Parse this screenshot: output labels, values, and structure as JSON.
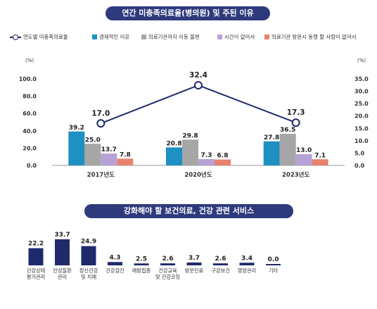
{
  "titles": {
    "chart1": "연간 미충족의료율(병의원) 및 주된 이유",
    "chart2": "강화해야 할 보건의료, 건강 관련 서비스"
  },
  "colors": {
    "title_bg": "#2e3a7c",
    "line": "#1f2a6b",
    "economic": "#1f8fc4",
    "wait": "#a6a6a6",
    "time": "#b7a2d6",
    "nocompanion": "#e8826f",
    "bar2": "#1f2a6b"
  },
  "chart_data": [
    {
      "type": "bar",
      "title": "연간 미충족의료율(병의원) 및 주된 이유",
      "categories": [
        "2017년도",
        "2020년도",
        "2023년도"
      ],
      "y_left": {
        "unit": "(%)",
        "ylim": [
          0,
          100
        ],
        "ticks": [
          "0.0",
          "20.0",
          "40.0",
          "60.0",
          "80.0",
          "100.0"
        ]
      },
      "y_right": {
        "unit": "(%)",
        "ylim": [
          0,
          35
        ],
        "ticks": [
          "0.0",
          "5.0",
          "10.0",
          "15.0",
          "20.0",
          "25.0",
          "30.0",
          "35.0"
        ]
      },
      "legend_position": "top",
      "series": [
        {
          "name": "경제적인 이유",
          "kind": "bar",
          "axis": "left",
          "color": "#1f8fc4",
          "values": [
            39.2,
            20.8,
            27.8
          ],
          "labels": [
            "39.2",
            "20.8",
            "27.8"
          ]
        },
        {
          "name": "의료기관까지 이동 불편",
          "kind": "bar",
          "axis": "left",
          "color": "#a6a6a6",
          "values": [
            25.0,
            29.8,
            36.5
          ],
          "labels": [
            "25.0",
            "29.8",
            "36.5"
          ]
        },
        {
          "name": "시간이 없어서",
          "kind": "bar",
          "axis": "left",
          "color": "#b7a2d6",
          "values": [
            13.7,
            7.3,
            13.0
          ],
          "labels": [
            "13.7",
            "7.3",
            "13.0"
          ]
        },
        {
          "name": "의료기관 방문시 동행 할 사람이 없어서",
          "kind": "bar",
          "axis": "left",
          "color": "#e8826f",
          "values": [
            7.8,
            6.8,
            7.1
          ],
          "labels": [
            "7.8",
            "6.8",
            "7.1"
          ]
        },
        {
          "name": "연도별 미충족의료율",
          "kind": "line",
          "axis": "right",
          "color": "#1f2a6b",
          "values": [
            17.0,
            32.4,
            17.3
          ],
          "labels": [
            "17.0",
            "32.4",
            "17.3"
          ]
        }
      ]
    },
    {
      "type": "bar",
      "title": "강화해야 할 보건의료, 건강 관련 서비스",
      "categories": [
        [
          "건강상태",
          "평가관리"
        ],
        [
          "만성질환",
          "관리"
        ],
        [
          "정신건강",
          "및 치매"
        ],
        [
          "건강검진"
        ],
        [
          "예방접종"
        ],
        [
          "건강교육",
          "및 건강코칭"
        ],
        [
          "방문진료"
        ],
        [
          "구강보건"
        ],
        [
          "영양관리"
        ],
        [
          "기타"
        ]
      ],
      "values": [
        22.2,
        33.7,
        24.9,
        4.3,
        2.5,
        2.6,
        3.7,
        2.6,
        3.4,
        0.0
      ],
      "labels": [
        "22.2",
        "33.7",
        "24.9",
        "4.3",
        "2.5",
        "2.6",
        "3.7",
        "2.6",
        "3.4",
        "0.0"
      ],
      "ylim": [
        0,
        40
      ]
    }
  ]
}
